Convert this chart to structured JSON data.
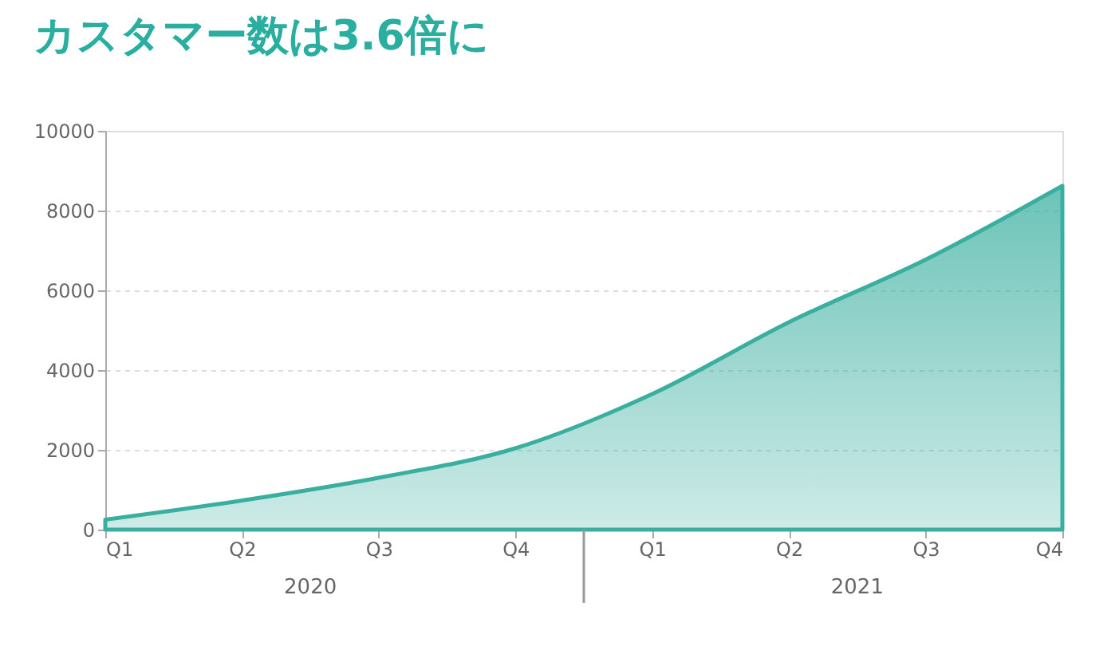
{
  "chart_data": {
    "type": "area",
    "title": "カスタマー数は3.6倍に",
    "categories": [
      "Q1",
      "Q2",
      "Q3",
      "Q4",
      "Q1",
      "Q2",
      "Q3",
      "Q4"
    ],
    "series": [
      {
        "color": "#3aafa0",
        "values": [
          250,
          730,
          1300,
          2040,
          3400,
          5200,
          6770,
          8620
        ]
      }
    ],
    "annotations": [
      "2020",
      "2021"
    ],
    "ylim": [
      0,
      10000
    ],
    "yticks": [
      0,
      2000,
      4000,
      6000,
      8000,
      10000
    ],
    "grid": "y"
  }
}
